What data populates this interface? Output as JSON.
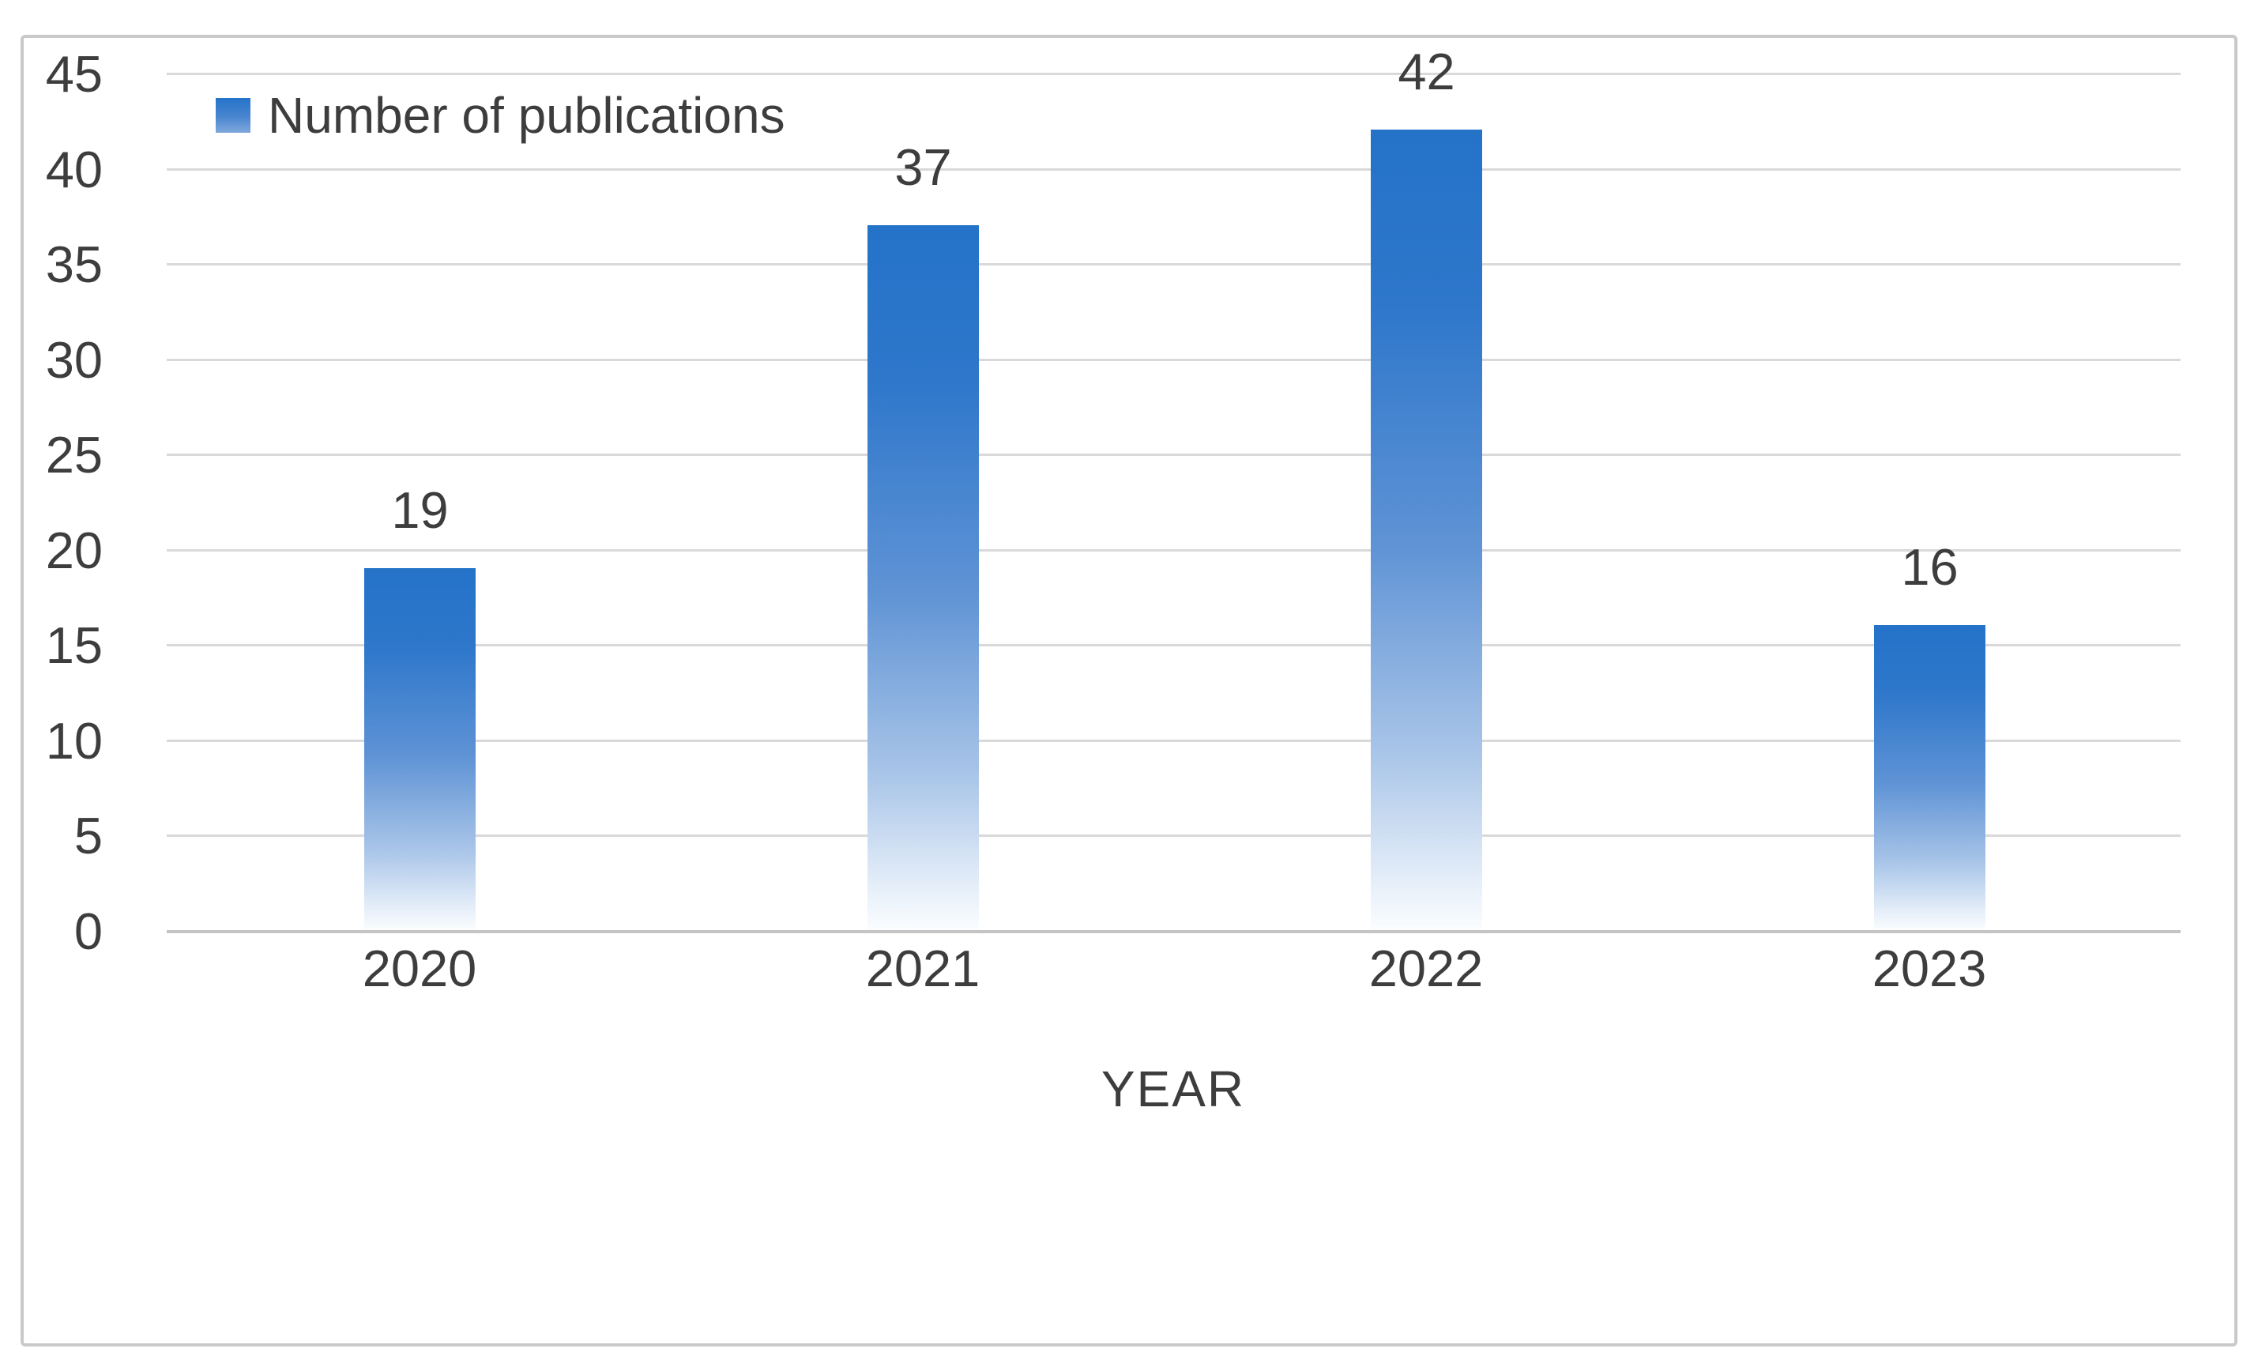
{
  "chart_data": {
    "type": "bar",
    "title": "",
    "xlabel": "YEAR",
    "ylabel": "",
    "categories": [
      "2020",
      "2021",
      "2022",
      "2023"
    ],
    "series": [
      {
        "name": "Number of publications",
        "values": [
          19,
          37,
          42,
          16
        ]
      }
    ],
    "yticks": [
      45,
      40,
      35,
      30,
      25,
      20,
      15,
      10,
      5,
      0
    ],
    "ylim": [
      0,
      45
    ],
    "ytick_step": 5,
    "grid": true,
    "data_labels": true,
    "legend_position": "top-left-inside"
  },
  "colors": {
    "bar_top": "#2473c9",
    "bar_bottom": "#fbfdff",
    "gridline": "#d9d9d9",
    "axis_line": "#c4c4c4",
    "text": "#3d3d3d",
    "frame_border": "#c9c9c9"
  }
}
